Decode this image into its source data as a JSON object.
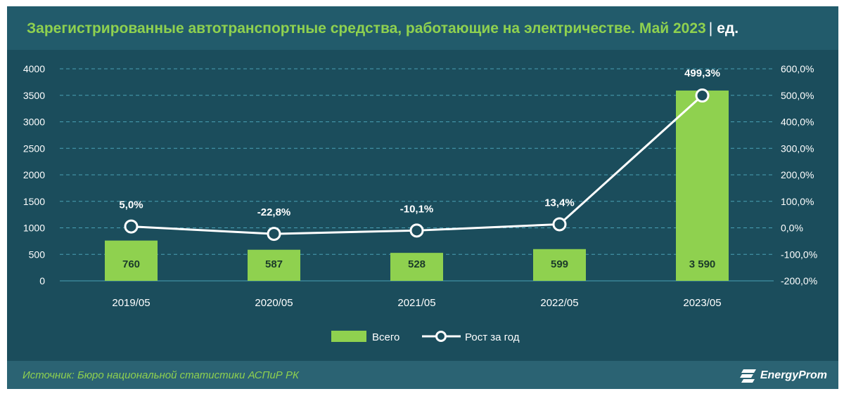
{
  "header": {
    "title": "Зарегистрированные автотранспортные средства, работающие на электричестве. Май 2023",
    "separator": "|",
    "unit": "ед."
  },
  "footer": {
    "source": "Источник: Бюро национальной статистики АСПиР РК",
    "logo_text": "EnergyProm"
  },
  "colors": {
    "bar": "#8fd14f",
    "line": "#ffffff",
    "grid": "#4aa0b4",
    "background": "#1b4d5c"
  },
  "chart_data": {
    "type": "bar",
    "categories": [
      "2019/05",
      "2020/05",
      "2021/05",
      "2022/05",
      "2023/05"
    ],
    "series": [
      {
        "name": "Всего",
        "type": "bar",
        "axis": "left",
        "values": [
          760,
          587,
          528,
          599,
          3590
        ],
        "labels": [
          "760",
          "587",
          "528",
          "599",
          "3 590"
        ]
      },
      {
        "name": "Рост за год",
        "type": "line",
        "axis": "right",
        "values": [
          5.0,
          -22.8,
          -10.1,
          13.4,
          499.3
        ],
        "labels": [
          "5,0%",
          "-22,8%",
          "-10,1%",
          "13,4%",
          "499,3%"
        ]
      }
    ],
    "left_axis": {
      "ylim": [
        0,
        4000
      ],
      "ticks": [
        "0",
        "500",
        "1000",
        "1500",
        "2000",
        "2500",
        "3000",
        "3500",
        "4000"
      ]
    },
    "right_axis": {
      "ylim": [
        -200,
        600
      ],
      "ticks": [
        "-200,0%",
        "-100,0%",
        "0,0%",
        "100,0%",
        "200,0%",
        "300,0%",
        "400,0%",
        "500,0%",
        "600,0%"
      ]
    },
    "grid": true,
    "legend_position": "bottom"
  }
}
